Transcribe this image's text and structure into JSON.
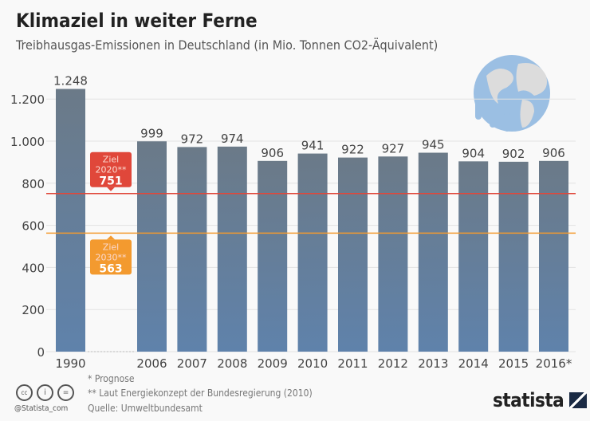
{
  "header": {
    "title": "Klimaziel in weiter Ferne",
    "subtitle": "Treibhausgas-Emissionen in Deutschland (in Mio. Tonnen CO2-Äquivalent)"
  },
  "chart_data": {
    "type": "bar",
    "categories": [
      "1990",
      "2006",
      "2007",
      "2008",
      "2009",
      "2010",
      "2011",
      "2012",
      "2013",
      "2014",
      "2015",
      "2016*"
    ],
    "values": [
      1248,
      999,
      972,
      974,
      906,
      941,
      922,
      927,
      945,
      904,
      902,
      906
    ],
    "value_labels": [
      "1.248",
      "999",
      "972",
      "974",
      "906",
      "941",
      "922",
      "927",
      "945",
      "904",
      "902",
      "906"
    ],
    "ylim": [
      0,
      1200
    ],
    "yticks": [
      0,
      200,
      400,
      600,
      800,
      1000,
      1200
    ],
    "ytick_labels": [
      "0",
      "200",
      "400",
      "600",
      "800",
      "1.000",
      "1.200"
    ],
    "grid": true,
    "bar_color": "#5f82ab",
    "targets": [
      {
        "label_line1": "Ziel",
        "label_line2": "2020**",
        "value": 751,
        "value_label": "751",
        "color": "#e0473a"
      },
      {
        "label_line1": "Ziel",
        "label_line2": "2030**",
        "value": 563,
        "value_label": "563",
        "color": "#f39a2f"
      }
    ]
  },
  "footer": {
    "note1": "*  Prognose",
    "note2": "** Laut Energiekonzept der Bundesregierung (2010)",
    "source": "Quelle: Umweltbundesamt",
    "handle": "@Statista_com",
    "brand": "statista"
  }
}
